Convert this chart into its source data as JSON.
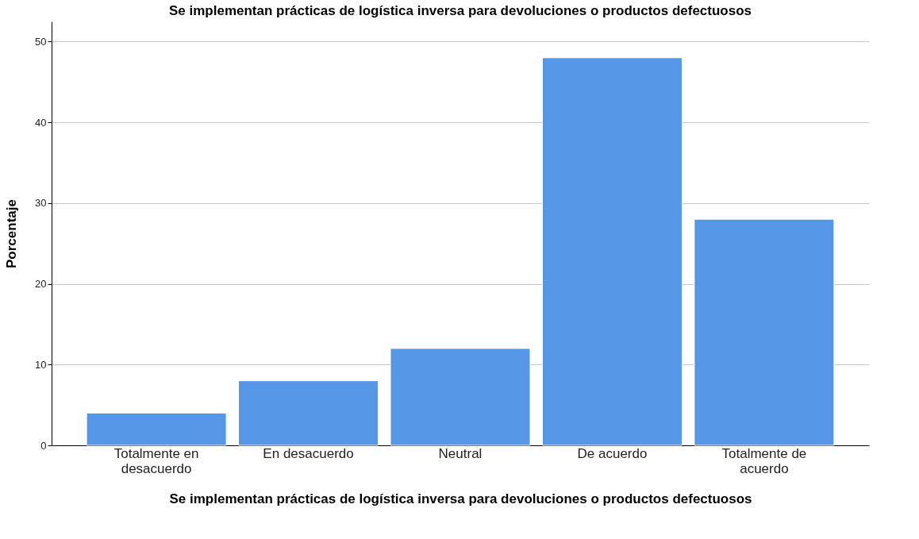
{
  "chart_data": {
    "type": "bar",
    "title": "Se implementan prácticas de logística inversa para devoluciones o productos defectuosos",
    "xlabel": "Se implementan prácticas de logística inversa para devoluciones o productos defectuosos",
    "ylabel": "Porcentaje",
    "categories": [
      "Totalmente en desacuerdo",
      "En desacuerdo",
      "Neutral",
      "De acuerdo",
      "Totalmente de acuerdo"
    ],
    "values": [
      4,
      8,
      12,
      48,
      28
    ],
    "color": "#5596e6",
    "ylim": [
      0,
      52.5
    ],
    "yticks": [
      0,
      10,
      20,
      30,
      40,
      50
    ],
    "grid": "y"
  }
}
